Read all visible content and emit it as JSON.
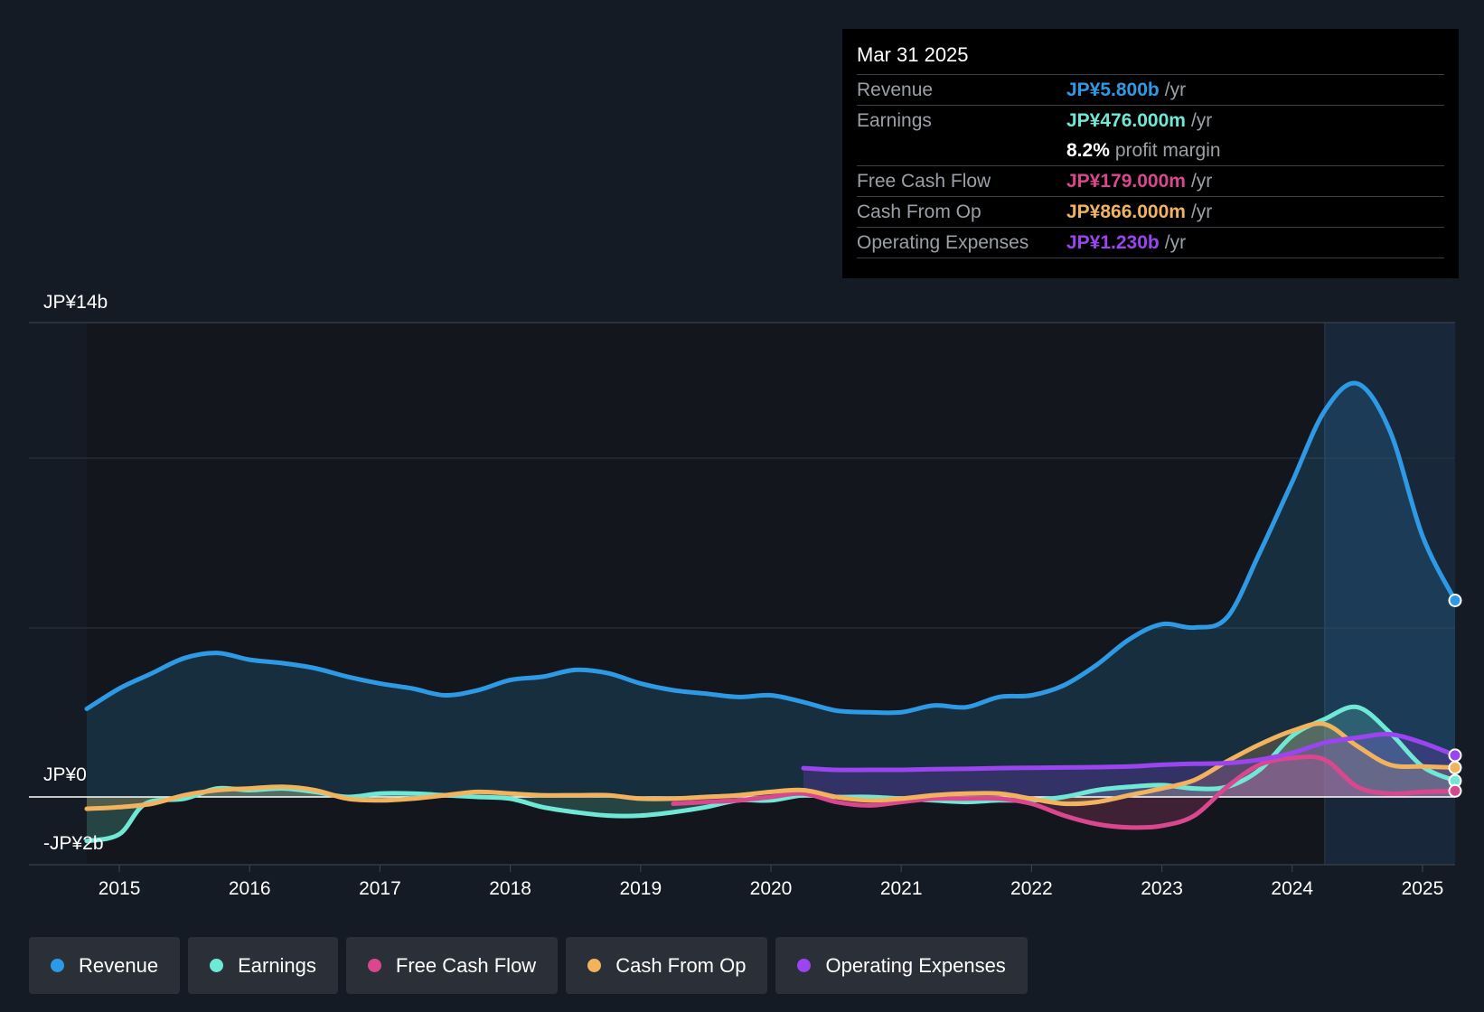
{
  "tooltip": {
    "date": "Mar 31 2025",
    "rows": [
      {
        "label": "Revenue",
        "value": "JP¥5.800b",
        "unit": "/yr",
        "color": "#2e9ae6"
      },
      {
        "label": "Earnings",
        "value": "JP¥476.000m",
        "unit": "/yr",
        "color": "#6fe8d6"
      },
      {
        "label": "",
        "value": "8.2%",
        "unit": "profit margin",
        "color": "#ffffff"
      },
      {
        "label": "Free Cash Flow",
        "value": "JP¥179.000m",
        "unit": "/yr",
        "color": "#d9488f"
      },
      {
        "label": "Cash From Op",
        "value": "JP¥866.000m",
        "unit": "/yr",
        "color": "#f2b35f"
      },
      {
        "label": "Operating Expenses",
        "value": "JP¥1.230b",
        "unit": "/yr",
        "color": "#9b45f0"
      }
    ]
  },
  "legend": [
    {
      "label": "Revenue",
      "color": "#2e9ae6"
    },
    {
      "label": "Earnings",
      "color": "#6fe8d6"
    },
    {
      "label": "Free Cash Flow",
      "color": "#d9488f"
    },
    {
      "label": "Cash From Op",
      "color": "#f2b35f"
    },
    {
      "label": "Operating Expenses",
      "color": "#9b45f0"
    }
  ],
  "chart_data": {
    "type": "line",
    "title": "",
    "xlabel": "",
    "ylabel": "",
    "y_axis_labels": {
      "top": "JP¥14b",
      "zero": "JP¥0",
      "bottom": "-JP¥2b"
    },
    "ylim": [
      -2,
      14
    ],
    "xlim": [
      2014.75,
      2025.25
    ],
    "x_ticks": [
      "2015",
      "2016",
      "2017",
      "2018",
      "2019",
      "2020",
      "2021",
      "2022",
      "2023",
      "2024",
      "2025"
    ],
    "forecast_start": 2024.25,
    "series": [
      {
        "name": "Revenue",
        "color": "#2e9ae6",
        "area": true,
        "points": [
          [
            2014.75,
            2.6
          ],
          [
            2015.0,
            3.2
          ],
          [
            2015.25,
            3.65
          ],
          [
            2015.5,
            4.1
          ],
          [
            2015.75,
            4.25
          ],
          [
            2016.0,
            4.05
          ],
          [
            2016.25,
            3.95
          ],
          [
            2016.5,
            3.8
          ],
          [
            2016.75,
            3.55
          ],
          [
            2017.0,
            3.35
          ],
          [
            2017.25,
            3.2
          ],
          [
            2017.5,
            3.0
          ],
          [
            2017.75,
            3.15
          ],
          [
            2018.0,
            3.45
          ],
          [
            2018.25,
            3.55
          ],
          [
            2018.5,
            3.75
          ],
          [
            2018.75,
            3.65
          ],
          [
            2019.0,
            3.35
          ],
          [
            2019.25,
            3.15
          ],
          [
            2019.5,
            3.05
          ],
          [
            2019.75,
            2.95
          ],
          [
            2020.0,
            3.0
          ],
          [
            2020.25,
            2.8
          ],
          [
            2020.5,
            2.55
          ],
          [
            2020.75,
            2.5
          ],
          [
            2021.0,
            2.5
          ],
          [
            2021.25,
            2.7
          ],
          [
            2021.5,
            2.65
          ],
          [
            2021.75,
            2.95
          ],
          [
            2022.0,
            3.0
          ],
          [
            2022.25,
            3.3
          ],
          [
            2022.5,
            3.9
          ],
          [
            2022.75,
            4.65
          ],
          [
            2023.0,
            5.1
          ],
          [
            2023.25,
            5.0
          ],
          [
            2023.5,
            5.3
          ],
          [
            2023.75,
            7.2
          ],
          [
            2024.0,
            9.3
          ],
          [
            2024.25,
            11.4
          ],
          [
            2024.5,
            12.2
          ],
          [
            2024.75,
            10.8
          ],
          [
            2025.0,
            7.7
          ],
          [
            2025.25,
            5.8
          ]
        ]
      },
      {
        "name": "Earnings",
        "color": "#6fe8d6",
        "area": true,
        "points": [
          [
            2014.75,
            -1.3
          ],
          [
            2015.0,
            -1.1
          ],
          [
            2015.2,
            -0.2
          ],
          [
            2015.5,
            -0.05
          ],
          [
            2015.75,
            0.25
          ],
          [
            2016.0,
            0.2
          ],
          [
            2016.25,
            0.25
          ],
          [
            2016.5,
            0.15
          ],
          [
            2016.75,
            0.0
          ],
          [
            2017.0,
            0.1
          ],
          [
            2017.25,
            0.1
          ],
          [
            2017.5,
            0.05
          ],
          [
            2017.75,
            0.0
          ],
          [
            2018.0,
            -0.05
          ],
          [
            2018.25,
            -0.3
          ],
          [
            2018.5,
            -0.45
          ],
          [
            2018.75,
            -0.55
          ],
          [
            2019.0,
            -0.55
          ],
          [
            2019.25,
            -0.45
          ],
          [
            2019.5,
            -0.3
          ],
          [
            2019.75,
            -0.1
          ],
          [
            2020.0,
            -0.1
          ],
          [
            2020.25,
            0.05
          ],
          [
            2020.5,
            0.0
          ],
          [
            2020.75,
            0.0
          ],
          [
            2021.0,
            -0.05
          ],
          [
            2021.25,
            -0.1
          ],
          [
            2021.5,
            -0.15
          ],
          [
            2021.75,
            -0.1
          ],
          [
            2022.0,
            -0.1
          ],
          [
            2022.25,
            0.0
          ],
          [
            2022.5,
            0.2
          ],
          [
            2022.75,
            0.3
          ],
          [
            2023.0,
            0.35
          ],
          [
            2023.25,
            0.25
          ],
          [
            2023.5,
            0.3
          ],
          [
            2023.75,
            0.8
          ],
          [
            2024.0,
            1.8
          ],
          [
            2024.25,
            2.3
          ],
          [
            2024.5,
            2.65
          ],
          [
            2024.75,
            1.9
          ],
          [
            2025.0,
            0.9
          ],
          [
            2025.25,
            0.476
          ]
        ]
      },
      {
        "name": "Free Cash Flow",
        "color": "#d9488f",
        "area": true,
        "points": [
          [
            2019.25,
            -0.2
          ],
          [
            2019.5,
            -0.15
          ],
          [
            2019.75,
            -0.1
          ],
          [
            2020.0,
            0.0
          ],
          [
            2020.25,
            0.1
          ],
          [
            2020.5,
            -0.15
          ],
          [
            2020.75,
            -0.25
          ],
          [
            2021.0,
            -0.15
          ],
          [
            2021.25,
            -0.05
          ],
          [
            2021.5,
            -0.05
          ],
          [
            2021.75,
            -0.05
          ],
          [
            2022.0,
            -0.2
          ],
          [
            2022.25,
            -0.55
          ],
          [
            2022.5,
            -0.8
          ],
          [
            2022.75,
            -0.9
          ],
          [
            2023.0,
            -0.85
          ],
          [
            2023.25,
            -0.55
          ],
          [
            2023.5,
            0.3
          ],
          [
            2023.75,
            0.95
          ],
          [
            2024.0,
            1.15
          ],
          [
            2024.25,
            1.1
          ],
          [
            2024.5,
            0.3
          ],
          [
            2024.75,
            0.1
          ],
          [
            2025.0,
            0.15
          ],
          [
            2025.25,
            0.179
          ]
        ]
      },
      {
        "name": "Cash From Op",
        "color": "#f2b35f",
        "area": true,
        "points": [
          [
            2014.75,
            -0.35
          ],
          [
            2015.0,
            -0.3
          ],
          [
            2015.25,
            -0.2
          ],
          [
            2015.5,
            0.05
          ],
          [
            2015.75,
            0.2
          ],
          [
            2016.0,
            0.25
          ],
          [
            2016.25,
            0.3
          ],
          [
            2016.5,
            0.2
          ],
          [
            2016.75,
            -0.05
          ],
          [
            2017.0,
            -0.1
          ],
          [
            2017.25,
            -0.05
          ],
          [
            2017.5,
            0.05
          ],
          [
            2017.75,
            0.15
          ],
          [
            2018.0,
            0.1
          ],
          [
            2018.25,
            0.05
          ],
          [
            2018.5,
            0.05
          ],
          [
            2018.75,
            0.05
          ],
          [
            2019.0,
            -0.05
          ],
          [
            2019.25,
            -0.05
          ],
          [
            2019.5,
            0.0
          ],
          [
            2019.75,
            0.05
          ],
          [
            2020.0,
            0.15
          ],
          [
            2020.25,
            0.2
          ],
          [
            2020.5,
            0.0
          ],
          [
            2020.75,
            -0.1
          ],
          [
            2021.0,
            -0.05
          ],
          [
            2021.25,
            0.05
          ],
          [
            2021.5,
            0.1
          ],
          [
            2021.75,
            0.1
          ],
          [
            2022.0,
            -0.05
          ],
          [
            2022.25,
            -0.2
          ],
          [
            2022.5,
            -0.15
          ],
          [
            2022.75,
            0.05
          ],
          [
            2023.0,
            0.25
          ],
          [
            2023.25,
            0.5
          ],
          [
            2023.5,
            1.05
          ],
          [
            2023.75,
            1.55
          ],
          [
            2024.0,
            1.95
          ],
          [
            2024.25,
            2.15
          ],
          [
            2024.5,
            1.5
          ],
          [
            2024.75,
            0.95
          ],
          [
            2025.0,
            0.9
          ],
          [
            2025.25,
            0.866
          ]
        ]
      },
      {
        "name": "Operating Expenses",
        "color": "#9b45f0",
        "area": true,
        "points": [
          [
            2020.25,
            0.85
          ],
          [
            2020.5,
            0.8
          ],
          [
            2020.75,
            0.8
          ],
          [
            2021.0,
            0.8
          ],
          [
            2021.25,
            0.82
          ],
          [
            2021.5,
            0.83
          ],
          [
            2021.75,
            0.85
          ],
          [
            2022.0,
            0.86
          ],
          [
            2022.25,
            0.87
          ],
          [
            2022.5,
            0.88
          ],
          [
            2022.75,
            0.9
          ],
          [
            2023.0,
            0.95
          ],
          [
            2023.25,
            0.98
          ],
          [
            2023.5,
            1.0
          ],
          [
            2023.75,
            1.1
          ],
          [
            2024.0,
            1.3
          ],
          [
            2024.25,
            1.6
          ],
          [
            2024.5,
            1.75
          ],
          [
            2024.75,
            1.85
          ],
          [
            2025.0,
            1.6
          ],
          [
            2025.25,
            1.23
          ]
        ]
      }
    ]
  }
}
